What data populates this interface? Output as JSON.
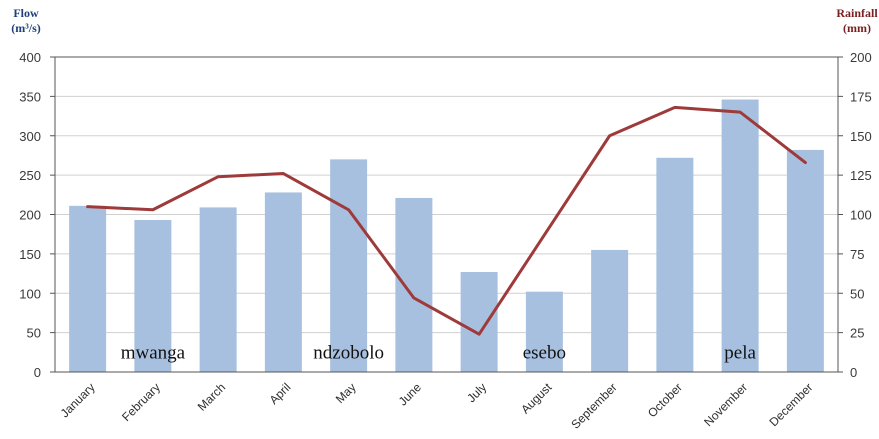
{
  "chart_data": {
    "type": "bar+line",
    "categories": [
      "January",
      "February",
      "March",
      "April",
      "May",
      "June",
      "July",
      "August",
      "September",
      "October",
      "November",
      "December"
    ],
    "series": [
      {
        "axis": "left",
        "type": "bar",
        "values": [
          211,
          193,
          209,
          228,
          270,
          221,
          127,
          102,
          155,
          272,
          346,
          282
        ],
        "color": "#a8c0df"
      },
      {
        "axis": "right",
        "type": "line",
        "values": [
          105,
          103,
          124,
          126,
          103,
          47,
          24,
          87,
          150,
          168,
          165,
          133
        ],
        "color": "#9e3a3a"
      }
    ],
    "left_axis": {
      "title_line1": "Flow",
      "title_line2": "(m³/s)",
      "range": [
        0,
        400
      ],
      "ticks": [
        0,
        50,
        100,
        150,
        200,
        250,
        300,
        350,
        400
      ],
      "color": "#1f3f7a"
    },
    "right_axis": {
      "title_line1": "Rainfall",
      "title_line2": "(mm)",
      "range": [
        0,
        200
      ],
      "ticks": [
        0,
        25,
        50,
        75,
        100,
        125,
        150,
        175,
        200
      ],
      "color": "#7a1f1f"
    },
    "grid": true,
    "annotations": [
      {
        "text": "mwanga",
        "category_index": 1,
        "value": 25
      },
      {
        "text": "ndzobolo",
        "category_index": 4,
        "value": 25
      },
      {
        "text": "esebo",
        "category_index": 7,
        "value": 25
      },
      {
        "text": "pela",
        "category_index": 10,
        "value": 25
      }
    ]
  }
}
